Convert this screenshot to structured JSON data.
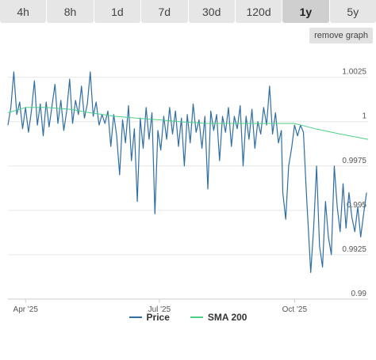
{
  "tabs": [
    {
      "label": "4h"
    },
    {
      "label": "8h"
    },
    {
      "label": "1d"
    },
    {
      "label": "7d"
    },
    {
      "label": "30d"
    },
    {
      "label": "120d"
    },
    {
      "label": "1y",
      "active": true
    },
    {
      "label": "5y"
    }
  ],
  "remove_graph_label": "remove graph",
  "colors": {
    "price": "#2f6ea5",
    "sma": "#4dcf86",
    "grid": "#e6e6e6",
    "tab_bg": "#e6e6e6",
    "tab_active": "#cfcfcf"
  },
  "chart_data": {
    "type": "line",
    "title": "",
    "xlabel": "",
    "ylabel": "",
    "ylim": [
      0.99,
      1.004
    ],
    "xlim": [
      "2025-03-20",
      "2025-11-20"
    ],
    "y_ticks": [
      {
        "value": 0.99,
        "label": "0.99"
      },
      {
        "value": 0.9925,
        "label": "0.9925"
      },
      {
        "value": 0.995,
        "label": "0.995"
      },
      {
        "value": 0.9975,
        "label": "0.9975"
      },
      {
        "value": 1.0,
        "label": "1"
      },
      {
        "value": 1.0025,
        "label": "1.0025"
      }
    ],
    "x_ticks": [
      {
        "date": "2025-04-01",
        "label": "Apr '25"
      },
      {
        "date": "2025-07-01",
        "label": "Jul '25"
      },
      {
        "date": "2025-10-01",
        "label": "Oct '25"
      }
    ],
    "grid": true,
    "legend": "bottom-center",
    "series": [
      {
        "name": "Price",
        "values": [
          [
            "2025-03-20",
            0.9998
          ],
          [
            "2025-03-22",
            1.0008
          ],
          [
            "2025-03-24",
            1.0028
          ],
          [
            "2025-03-26",
            1.0004
          ],
          [
            "2025-03-28",
            1.0011
          ],
          [
            "2025-03-30",
            0.9996
          ],
          [
            "2025-04-01",
            1.0008
          ],
          [
            "2025-04-03",
            0.9994
          ],
          [
            "2025-04-05",
            1.0006
          ],
          [
            "2025-04-07",
            1.0023
          ],
          [
            "2025-04-09",
            0.9998
          ],
          [
            "2025-04-11",
            1.001
          ],
          [
            "2025-04-13",
            0.9992
          ],
          [
            "2025-04-15",
            1.0011
          ],
          [
            "2025-04-17",
            0.9997
          ],
          [
            "2025-04-19",
            1.0009
          ],
          [
            "2025-04-21",
            1.0021
          ],
          [
            "2025-04-23",
            0.9999
          ],
          [
            "2025-04-25",
            1.0012
          ],
          [
            "2025-04-27",
            0.9995
          ],
          [
            "2025-04-29",
            1.0006
          ],
          [
            "2025-05-01",
            1.0024
          ],
          [
            "2025-05-03",
            0.9999
          ],
          [
            "2025-05-05",
            1.0012
          ],
          [
            "2025-05-07",
            1.0004
          ],
          [
            "2025-05-09",
            1.002
          ],
          [
            "2025-05-11",
            1.0002
          ],
          [
            "2025-05-13",
            1.001
          ],
          [
            "2025-05-15",
            1.0028
          ],
          [
            "2025-05-17",
            1.0003
          ],
          [
            "2025-05-19",
            1.0011
          ],
          [
            "2025-05-21",
            0.9998
          ],
          [
            "2025-05-23",
            1.0004
          ],
          [
            "2025-05-25",
            0.9999
          ],
          [
            "2025-05-27",
            1.0006
          ],
          [
            "2025-05-29",
            0.9986
          ],
          [
            "2025-05-31",
            1.0004
          ],
          [
            "2025-06-02",
            0.9992
          ],
          [
            "2025-06-04",
            0.997
          ],
          [
            "2025-06-06",
            1.0001
          ],
          [
            "2025-06-08",
            0.9988
          ],
          [
            "2025-06-10",
            1.0009
          ],
          [
            "2025-06-12",
            0.9978
          ],
          [
            "2025-06-14",
            0.9996
          ],
          [
            "2025-06-16",
            0.9955
          ],
          [
            "2025-06-18",
            1.0002
          ],
          [
            "2025-06-20",
            0.9985
          ],
          [
            "2025-06-22",
            1.0008
          ],
          [
            "2025-06-24",
            0.999
          ],
          [
            "2025-06-26",
            1.0005
          ],
          [
            "2025-06-28",
            0.9948
          ],
          [
            "2025-06-30",
            0.9995
          ],
          [
            "2025-07-02",
            0.9984
          ],
          [
            "2025-07-04",
            1.0003
          ],
          [
            "2025-07-06",
            0.999
          ],
          [
            "2025-07-08",
            1.0008
          ],
          [
            "2025-07-10",
            0.9993
          ],
          [
            "2025-07-12",
            1.0006
          ],
          [
            "2025-07-14",
            0.9986
          ],
          [
            "2025-07-16",
            1.0002
          ],
          [
            "2025-07-18",
            0.9975
          ],
          [
            "2025-07-20",
            1.0004
          ],
          [
            "2025-07-22",
            0.9988
          ],
          [
            "2025-07-24",
            1.001
          ],
          [
            "2025-07-26",
            0.9994
          ],
          [
            "2025-07-28",
            1.0001
          ],
          [
            "2025-07-30",
            0.9985
          ],
          [
            "2025-08-01",
            1.0003
          ],
          [
            "2025-08-03",
            0.9962
          ],
          [
            "2025-08-05",
            1.0006
          ],
          [
            "2025-08-07",
            0.9995
          ],
          [
            "2025-08-09",
            1.0004
          ],
          [
            "2025-08-11",
            0.9978
          ],
          [
            "2025-08-13",
            1.0003
          ],
          [
            "2025-08-15",
            0.9994
          ],
          [
            "2025-08-17",
            1.0008
          ],
          [
            "2025-08-19",
            0.9986
          ],
          [
            "2025-08-21",
            1.0003
          ],
          [
            "2025-08-23",
            0.9996
          ],
          [
            "2025-08-25",
            1.0009
          ],
          [
            "2025-08-27",
            0.9975
          ],
          [
            "2025-08-29",
            1.0003
          ],
          [
            "2025-08-31",
            0.999
          ],
          [
            "2025-09-02",
            1.0007
          ],
          [
            "2025-09-04",
            0.9985
          ],
          [
            "2025-09-06",
            1.0
          ],
          [
            "2025-09-08",
            0.9993
          ],
          [
            "2025-09-10",
            1.0008
          ],
          [
            "2025-09-12",
            0.9998
          ],
          [
            "2025-09-14",
            1.002
          ],
          [
            "2025-09-16",
            0.9993
          ],
          [
            "2025-09-18",
            1.0005
          ],
          [
            "2025-09-20",
            0.9988
          ],
          [
            "2025-09-22",
            0.9995
          ],
          [
            "2025-09-23",
            0.996
          ],
          [
            "2025-09-25",
            0.9945
          ],
          [
            "2025-09-27",
            0.9975
          ],
          [
            "2025-09-29",
            0.9985
          ],
          [
            "2025-10-01",
            0.9998
          ],
          [
            "2025-10-03",
            0.9992
          ],
          [
            "2025-10-05",
            0.9998
          ],
          [
            "2025-10-07",
            0.9994
          ],
          [
            "2025-10-09",
            0.996
          ],
          [
            "2025-10-11",
            0.993
          ],
          [
            "2025-10-12",
            0.9915
          ],
          [
            "2025-10-14",
            0.994
          ],
          [
            "2025-10-16",
            0.9975
          ],
          [
            "2025-10-18",
            0.993
          ],
          [
            "2025-10-20",
            0.9918
          ],
          [
            "2025-10-22",
            0.9955
          ],
          [
            "2025-10-24",
            0.9935
          ],
          [
            "2025-10-26",
            0.9925
          ],
          [
            "2025-10-28",
            0.9975
          ],
          [
            "2025-10-30",
            0.9952
          ],
          [
            "2025-11-01",
            0.9938
          ],
          [
            "2025-11-03",
            0.9965
          ],
          [
            "2025-11-05",
            0.994
          ],
          [
            "2025-11-07",
            0.996
          ],
          [
            "2025-11-09",
            0.9946
          ],
          [
            "2025-11-11",
            0.9938
          ],
          [
            "2025-11-13",
            0.9952
          ],
          [
            "2025-11-15",
            0.9935
          ],
          [
            "2025-11-17",
            0.9948
          ],
          [
            "2025-11-19",
            0.996
          ]
        ]
      },
      {
        "name": "SMA 200",
        "values": [
          [
            "2025-03-20",
            1.0005
          ],
          [
            "2025-04-01",
            1.0008
          ],
          [
            "2025-04-15",
            1.0008
          ],
          [
            "2025-05-01",
            1.0007
          ],
          [
            "2025-05-15",
            1.0005
          ],
          [
            "2025-06-01",
            1.0003
          ],
          [
            "2025-06-15",
            1.0002
          ],
          [
            "2025-07-01",
            1.0001
          ],
          [
            "2025-07-15",
            1.0
          ],
          [
            "2025-08-01",
            0.9999
          ],
          [
            "2025-08-15",
            0.9999
          ],
          [
            "2025-09-01",
            0.9999
          ],
          [
            "2025-09-15",
            0.9999
          ],
          [
            "2025-10-01",
            0.9999
          ],
          [
            "2025-10-15",
            0.9996
          ],
          [
            "2025-11-01",
            0.9993
          ],
          [
            "2025-11-20",
            0.999
          ]
        ]
      }
    ]
  }
}
